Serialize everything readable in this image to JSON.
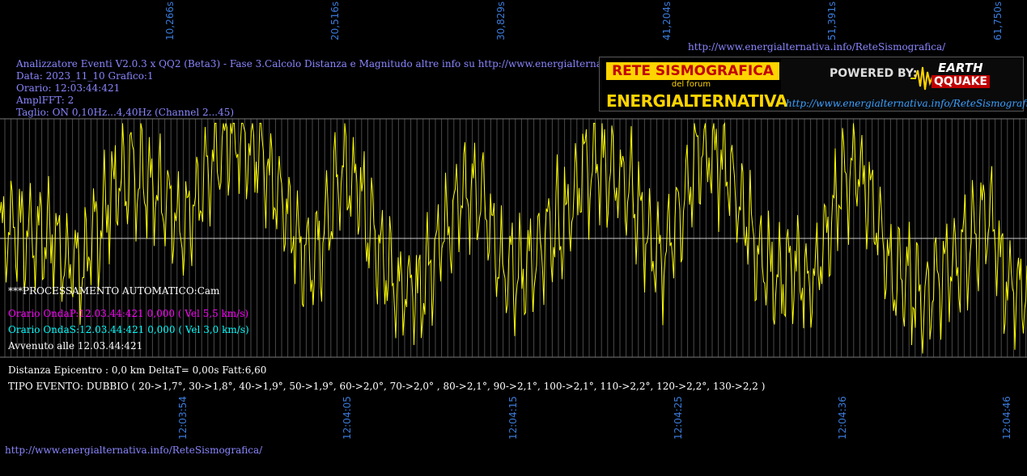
{
  "header": {
    "title_line": "Analizzatore Eventi V2.0.3 x QQ2 (Beta3) - Fase 3.Calcolo Distanza e Magnitudo altre info su http://www.energialternativa.info/ReteSismografica/",
    "date_line": "Data: 2023_11_10 Grafico:1",
    "time_line": "Orario: 12:03:44:421",
    "ampl_line": "AmplFFT: 2",
    "cut_line": "Taglio: ON 0,10Hz...4,40Hz       (Channel 2...45)"
  },
  "top_url": "http://www.energialternativa.info/ReteSismografica/",
  "bottom_url": "http://www.energialternativa.info/ReteSismografica/",
  "logo": {
    "line1": "RETE SISMOGRAFICA",
    "line2": "del forum",
    "line3": "ENERGIALTERNATIVA",
    "powered": "POWERED BY:",
    "brand_top": "EARTH",
    "brand_bottom": "QQUAKE",
    "url": "http://www.energialternativa.info/ReteSismografica"
  },
  "processing": {
    "auto": "***PROCESSAMENTO AUTOMATICO:Cam",
    "p_wave": "Orario OndaP:12.03.44:421  0,000 ( Vel 5,5 km/s)",
    "s_wave": "Orario OndaS:12.03.44:421  0,000 ( Vel 3,0 km/s)",
    "occurred": "Avvenuto alle 12.03.44:421",
    "distance": "Distanza Epicentro : 0,0 km DeltaT= 0,00s  Fatt:6,60",
    "event_type": "TIPO EVENTO: DUBBIO ( 20->1,7°, 30->1,8°, 40->1,9°, 50->1,9°, 60->2,0°, 70->2,0° , 80->2,1°, 90->2,1°, 100->2,1°, 110->2,2°, 120->2,2°, 130->2,2 )"
  },
  "colors": {
    "signal": "#ffff00",
    "grid": "#4a4a4a",
    "tick_text": "#3a7ad8",
    "header_text": "#8a86ff",
    "p_wave": "#ff00ff",
    "s_wave": "#00ffff",
    "white": "#ffffff"
  },
  "chart_data": {
    "type": "line",
    "top_axis_ticks": [
      "10,266s",
      "20,516s",
      "30,829s",
      "41,204s",
      "51,391s",
      "61,750s"
    ],
    "bottom_axis_ticks": [
      "12:03:54",
      "12:04:05",
      "12:04:15",
      "12:04:25",
      "12:04:36",
      "12:04:46"
    ],
    "grid": true,
    "series": [
      {
        "envelope": [
          [
            0,
            0.05
          ],
          [
            20,
            0.1
          ],
          [
            40,
            0.0
          ],
          [
            60,
            0.05
          ],
          [
            80,
            -0.15
          ],
          [
            100,
            -0.25
          ],
          [
            120,
            0.05
          ],
          [
            140,
            0.4
          ],
          [
            160,
            0.55
          ],
          [
            180,
            0.5
          ],
          [
            200,
            0.4
          ],
          [
            220,
            0.1
          ],
          [
            240,
            0.25
          ],
          [
            260,
            0.55
          ],
          [
            280,
            0.8
          ],
          [
            300,
            0.8
          ],
          [
            320,
            0.7
          ],
          [
            340,
            0.45
          ],
          [
            360,
            0.15
          ],
          [
            380,
            -0.25
          ],
          [
            400,
            0.0
          ],
          [
            420,
            0.55
          ],
          [
            440,
            0.45
          ],
          [
            460,
            0.05
          ],
          [
            480,
            -0.25
          ],
          [
            500,
            -0.45
          ],
          [
            520,
            -0.45
          ],
          [
            540,
            -0.05
          ],
          [
            560,
            0.25
          ],
          [
            580,
            0.4
          ],
          [
            600,
            0.3
          ],
          [
            620,
            -0.25
          ],
          [
            640,
            -0.35
          ],
          [
            660,
            -0.15
          ],
          [
            680,
            0.05
          ],
          [
            700,
            0.2
          ],
          [
            720,
            0.55
          ],
          [
            740,
            0.6
          ],
          [
            760,
            0.5
          ],
          [
            780,
            0.35
          ],
          [
            800,
            0.05
          ],
          [
            820,
            -0.15
          ],
          [
            840,
            0.2
          ],
          [
            860,
            0.6
          ],
          [
            880,
            0.7
          ],
          [
            900,
            0.55
          ],
          [
            920,
            0.2
          ],
          [
            940,
            -0.15
          ],
          [
            960,
            -0.35
          ],
          [
            980,
            -0.25
          ],
          [
            1000,
            -0.4
          ],
          [
            1020,
            -0.05
          ],
          [
            1040,
            0.45
          ],
          [
            1060,
            0.6
          ],
          [
            1080,
            0.25
          ],
          [
            1100,
            -0.25
          ],
          [
            1120,
            -0.35
          ],
          [
            1140,
            -0.55
          ],
          [
            1160,
            -0.3
          ],
          [
            1180,
            -0.2
          ],
          [
            1200,
            -0.05
          ],
          [
            1220,
            0.25
          ],
          [
            1240,
            -0.35
          ],
          [
            1260,
            -0.45
          ],
          [
            1269,
            -0.3
          ]
        ]
      }
    ]
  }
}
